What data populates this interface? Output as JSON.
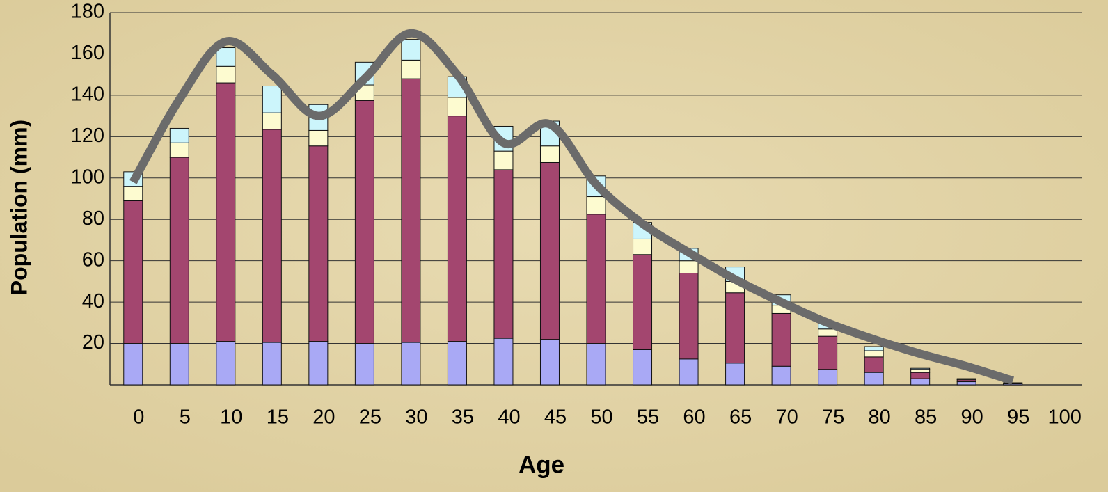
{
  "chart_data": {
    "type": "bar",
    "stacked": true,
    "y_label": "Population (mm)",
    "x_label": "Age",
    "categories": [
      "0",
      "5",
      "10",
      "15",
      "20",
      "25",
      "30",
      "35",
      "40",
      "45",
      "50",
      "55",
      "60",
      "65",
      "70",
      "75",
      "80",
      "85",
      "90",
      "95",
      "100"
    ],
    "series": [
      {
        "color": "#a9a9f5",
        "values": [
          20,
          20,
          21,
          20.5,
          21,
          20,
          20.5,
          21,
          22.5,
          22,
          20,
          17,
          12.5,
          10.5,
          9,
          7.5,
          6,
          3,
          1.5,
          0.5,
          null
        ]
      },
      {
        "color": "#a3466f",
        "values": [
          69,
          90,
          125,
          103,
          94.5,
          117.5,
          127.5,
          109,
          81.5,
          85.5,
          62.5,
          46,
          41.5,
          34,
          25.5,
          16,
          7.5,
          3,
          1,
          0.3,
          null
        ]
      },
      {
        "color": "#fdfbd0",
        "values": [
          7,
          7,
          8,
          8,
          7.5,
          7.5,
          9,
          9,
          9,
          8,
          8.5,
          7.5,
          6,
          5.5,
          4,
          3.5,
          3,
          1.5,
          0.5,
          0.1,
          null
        ]
      },
      {
        "color": "#ccf5fb",
        "values": [
          7,
          7,
          9,
          13,
          12.5,
          11,
          10,
          10,
          12,
          12,
          10,
          8,
          6,
          7,
          5,
          3,
          2,
          0.5,
          0,
          0.1,
          null
        ]
      },
      {
        "type": "line",
        "color": "#6b6b6b",
        "values": [
          98,
          138,
          166,
          150,
          130,
          148,
          170,
          150,
          117,
          126,
          97,
          78,
          64,
          51,
          40,
          30,
          22,
          15,
          9,
          2,
          null
        ]
      }
    ],
    "ylim": [
      0,
      180
    ],
    "yticks": [
      20,
      40,
      60,
      80,
      100,
      120,
      140,
      160,
      180
    ],
    "grid": true
  }
}
